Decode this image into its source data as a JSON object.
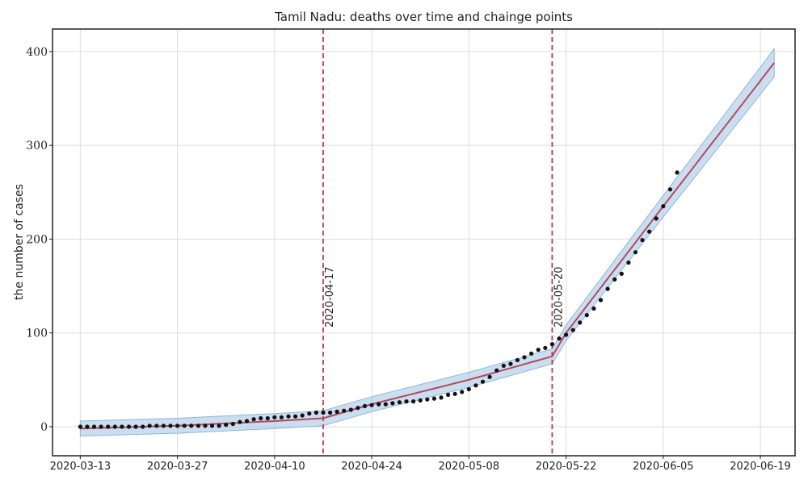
{
  "chart_data": {
    "type": "line",
    "title": "Tamil Nadu:  deaths over time and chainge points",
    "xlabel": "",
    "ylabel": "the number of cases",
    "x_tick_labels": [
      "2020-03-13",
      "2020-03-27",
      "2020-04-10",
      "2020-04-24",
      "2020-05-08",
      "2020-05-22",
      "2020-06-05",
      "2020-06-19"
    ],
    "y_tick_labels": [
      "0",
      "100",
      "200",
      "300",
      "400"
    ],
    "x_range": [
      "2020-03-09",
      "2020-06-24"
    ],
    "ylim": [
      -31,
      424
    ],
    "grid": true,
    "colors": {
      "observed": "#111111",
      "trend": "#b14b5e",
      "band_fill": "#a9c8e6",
      "band_edge": "#8fb6dd",
      "changepoint": "#c0394b",
      "grid": "#dddddd",
      "frame": "#222222"
    },
    "changepoints": [
      {
        "date": "2020-04-17",
        "label": "2020-04-17"
      },
      {
        "date": "2020-05-20",
        "label": "2020-05-20"
      }
    ],
    "observed": {
      "x_start": "2020-03-13",
      "values": [
        0,
        0,
        0,
        0,
        0,
        0,
        0,
        0,
        0,
        0,
        1,
        1,
        1,
        1,
        1,
        1,
        1,
        1,
        1,
        1,
        1,
        2,
        3,
        5,
        6,
        8,
        9,
        9,
        10,
        10,
        11,
        11,
        12,
        14,
        15,
        15,
        15,
        16,
        17,
        18,
        20,
        22,
        23,
        24,
        24,
        25,
        26,
        27,
        27,
        28,
        29,
        30,
        31,
        34,
        35,
        37,
        40,
        44,
        48,
        53,
        60,
        65,
        67,
        71,
        74,
        78,
        82,
        84,
        88,
        94,
        98,
        103,
        111,
        119,
        126,
        135,
        147,
        157,
        163,
        175,
        186,
        199,
        208,
        222,
        235,
        253,
        271
      ]
    },
    "trend": {
      "points": [
        {
          "date": "2020-03-13",
          "value": -2
        },
        {
          "date": "2020-03-27",
          "value": 1
        },
        {
          "date": "2020-04-10",
          "value": 6
        },
        {
          "date": "2020-04-17",
          "value": 9
        },
        {
          "date": "2020-04-24",
          "value": 24
        },
        {
          "date": "2020-05-08",
          "value": 50
        },
        {
          "date": "2020-05-20",
          "value": 75
        },
        {
          "date": "2020-05-22",
          "value": 100
        },
        {
          "date": "2020-06-05",
          "value": 235
        },
        {
          "date": "2020-06-21",
          "value": 388
        }
      ]
    },
    "band": {
      "half_width_points": [
        {
          "date": "2020-03-13",
          "value": 8
        },
        {
          "date": "2020-05-20",
          "value": 8
        },
        {
          "date": "2020-06-21",
          "value": 15
        }
      ]
    }
  }
}
